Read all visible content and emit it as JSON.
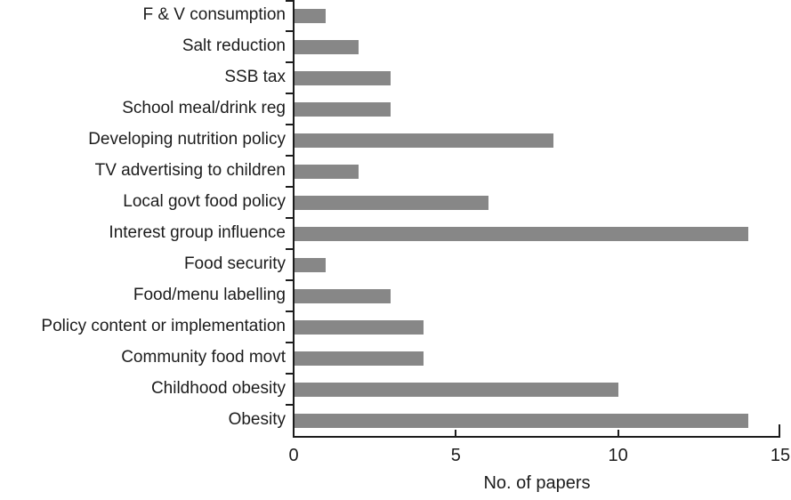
{
  "chart_data": {
    "type": "bar",
    "orientation": "horizontal",
    "title": "",
    "xlabel": "No. of papers",
    "ylabel": "",
    "xlim": [
      0,
      15
    ],
    "xticks": [
      0,
      5,
      10,
      15
    ],
    "grid": false,
    "legend": "none",
    "bar_color": "#878787",
    "axis_color": "#1c1c1c",
    "text_color": "#1c1c1c",
    "background_color": "#ffffff",
    "categories": [
      "F & V consumption",
      "Salt reduction",
      "SSB tax",
      "School meal/drink reg",
      "Developing nutrition policy",
      "TV advertising to children",
      "Local govt food policy",
      "Interest group influence",
      "Food security",
      "Food/menu labelling",
      "Policy content or implementation",
      "Community food movt",
      "Childhood obesity",
      "Obesity"
    ],
    "values": [
      1,
      2,
      3,
      3,
      8,
      2,
      6,
      14,
      1,
      3,
      4,
      4,
      10,
      14
    ]
  }
}
